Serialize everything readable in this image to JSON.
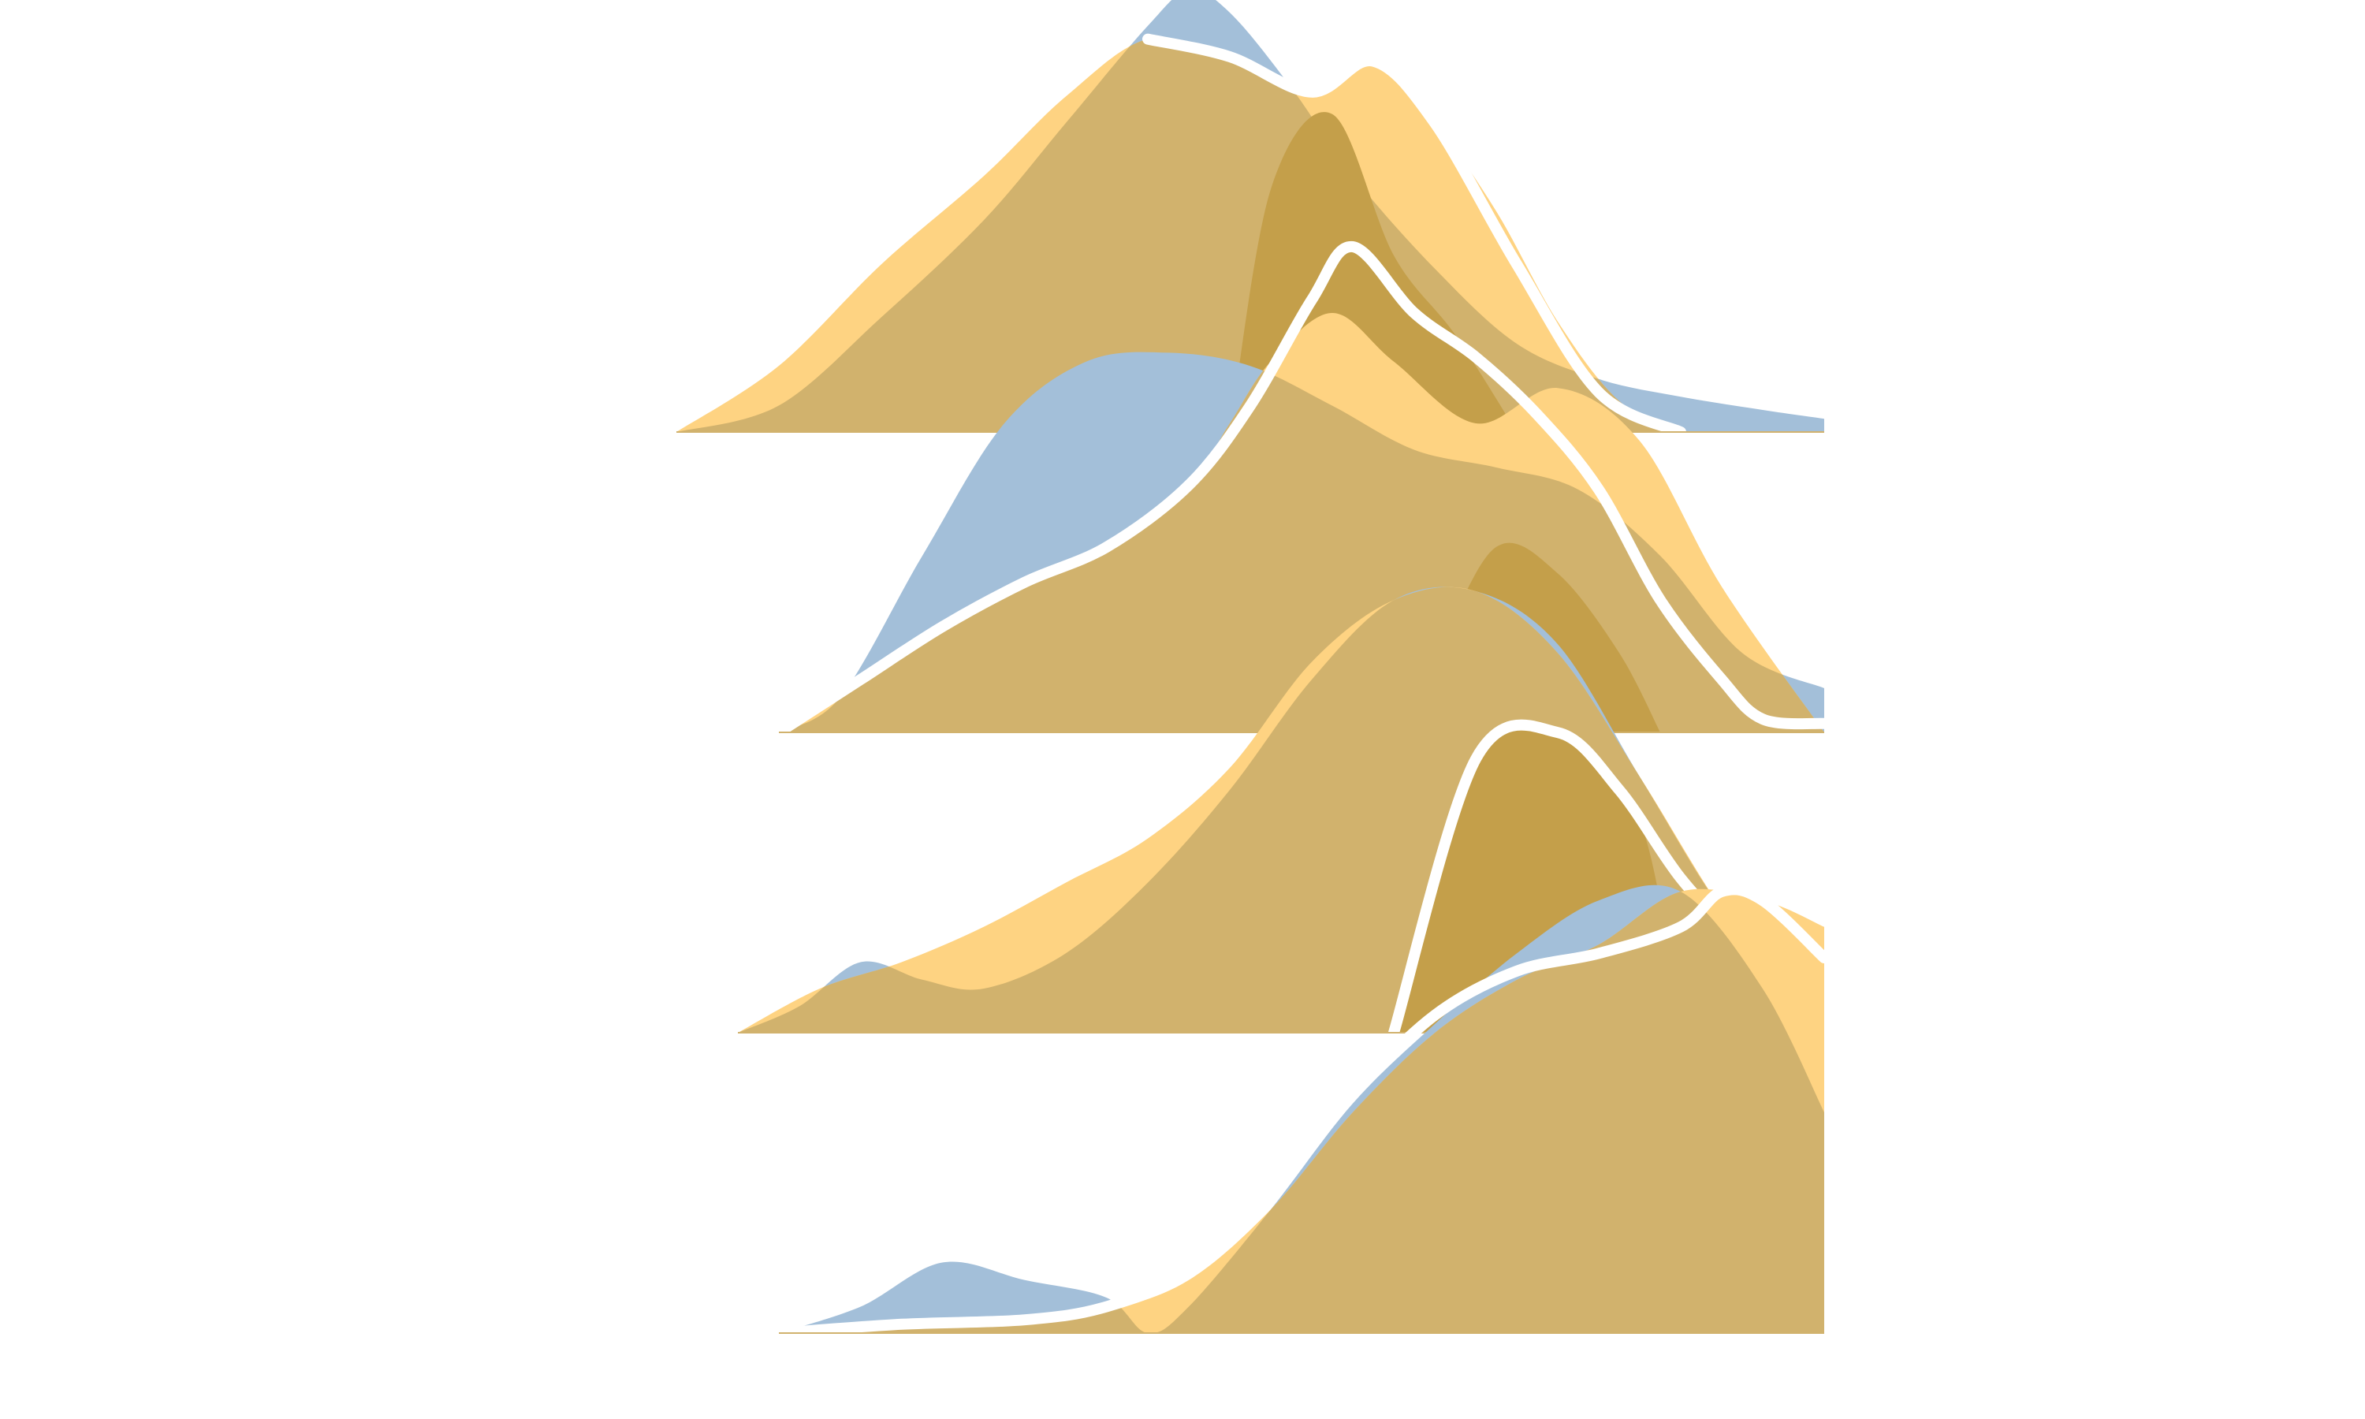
{
  "chart_data": {
    "type": "area",
    "title": "",
    "xlabel": "",
    "ylabel": "",
    "xlim": [
      0,
      100
    ],
    "grid": false,
    "legend": "none",
    "clip_right_x": 89,
    "series_colors": {
      "blue": "#a3bfd9",
      "yellow": "#fed382",
      "overlap": "#d1b26d",
      "highlight": "#e6ab38",
      "highlight_overlap": "#c49f4a",
      "outline": "#ffffff"
    },
    "rows": [
      {
        "blue": [
          [
            33,
            0
          ],
          [
            38,
            0.06
          ],
          [
            43,
            0.26
          ],
          [
            48,
            0.48
          ],
          [
            52,
            0.7
          ],
          [
            56,
            0.92
          ],
          [
            58,
            1.0
          ],
          [
            60,
            0.95
          ],
          [
            63,
            0.78
          ],
          [
            66,
            0.58
          ],
          [
            70,
            0.37
          ],
          [
            74,
            0.2
          ],
          [
            78,
            0.12
          ],
          [
            82,
            0.08
          ],
          [
            86,
            0.05
          ],
          [
            89,
            0.03
          ]
        ],
        "yellow": [
          [
            33,
            0
          ],
          [
            38,
            0.15
          ],
          [
            43,
            0.38
          ],
          [
            48,
            0.58
          ],
          [
            52,
            0.76
          ],
          [
            56,
            0.89
          ],
          [
            60,
            0.85
          ],
          [
            64,
            0.77
          ],
          [
            67,
            0.84
          ],
          [
            70,
            0.7
          ],
          [
            73,
            0.5
          ],
          [
            76,
            0.25
          ],
          [
            79,
            0.07
          ],
          [
            82,
            0.0
          ]
        ],
        "highlight": [
          [
            60,
            0
          ],
          [
            62,
            0.55
          ],
          [
            65,
            0.72
          ],
          [
            68,
            0.4
          ],
          [
            71,
            0.22
          ],
          [
            74,
            0.0
          ]
        ],
        "outline": [
          [
            56,
            0.89
          ],
          [
            60,
            0.85
          ],
          [
            64,
            0.77
          ],
          [
            67,
            0.84
          ],
          [
            70,
            0.7
          ],
          [
            74,
            0.38
          ],
          [
            78,
            0.09
          ],
          [
            82,
            0.0
          ]
        ]
      },
      {
        "blue": [
          [
            38,
            0
          ],
          [
            41,
            0.08
          ],
          [
            45,
            0.4
          ],
          [
            49,
            0.7
          ],
          [
            53,
            0.84
          ],
          [
            57,
            0.86
          ],
          [
            61,
            0.83
          ],
          [
            65,
            0.74
          ],
          [
            69,
            0.64
          ],
          [
            73,
            0.6
          ],
          [
            77,
            0.55
          ],
          [
            81,
            0.4
          ],
          [
            85,
            0.18
          ],
          [
            89,
            0.1
          ]
        ],
        "yellow": [
          [
            38,
            0
          ],
          [
            42,
            0.12
          ],
          [
            46,
            0.24
          ],
          [
            50,
            0.34
          ],
          [
            54,
            0.42
          ],
          [
            58,
            0.56
          ],
          [
            60,
            0.7
          ],
          [
            62,
            0.84
          ],
          [
            65,
            0.95
          ],
          [
            68,
            0.84
          ],
          [
            72,
            0.7
          ],
          [
            76,
            0.78
          ],
          [
            80,
            0.66
          ],
          [
            84,
            0.33
          ],
          [
            89,
            0.0
          ]
        ],
        "highlight": [
          [
            67,
            0
          ],
          [
            70,
            0.18
          ],
          [
            73,
            0.42
          ],
          [
            76,
            0.36
          ],
          [
            79,
            0.18
          ],
          [
            81,
            0.0
          ]
        ],
        "outline": [
          [
            38,
            0
          ],
          [
            42,
            0.12
          ],
          [
            46,
            0.24
          ],
          [
            50,
            0.34
          ],
          [
            54,
            0.42
          ],
          [
            58,
            0.56
          ],
          [
            61,
            0.74
          ],
          [
            64,
            0.98
          ],
          [
            66,
            1.1
          ],
          [
            69,
            0.95
          ],
          [
            72,
            0.85
          ],
          [
            75,
            0.72
          ],
          [
            78,
            0.55
          ],
          [
            81,
            0.3
          ],
          [
            84,
            0.12
          ],
          [
            86,
            0.03
          ],
          [
            89,
            0.02
          ]
        ]
      },
      {
        "blue": [
          [
            36,
            0
          ],
          [
            39,
            0.06
          ],
          [
            42,
            0.16
          ],
          [
            45,
            0.12
          ],
          [
            48,
            0.1
          ],
          [
            52,
            0.18
          ],
          [
            56,
            0.34
          ],
          [
            60,
            0.55
          ],
          [
            64,
            0.8
          ],
          [
            68,
            0.98
          ],
          [
            72,
            1.0
          ],
          [
            76,
            0.88
          ],
          [
            80,
            0.58
          ],
          [
            84,
            0.28
          ],
          [
            87,
            0.15
          ],
          [
            89,
            0.0
          ]
        ],
        "yellow": [
          [
            36,
            0
          ],
          [
            40,
            0.1
          ],
          [
            44,
            0.16
          ],
          [
            48,
            0.24
          ],
          [
            52,
            0.34
          ],
          [
            56,
            0.44
          ],
          [
            60,
            0.6
          ],
          [
            64,
            0.84
          ],
          [
            68,
            0.98
          ],
          [
            72,
            1.0
          ],
          [
            76,
            0.86
          ],
          [
            80,
            0.58
          ],
          [
            84,
            0.28
          ],
          [
            87,
            0.12
          ],
          [
            89,
            0.0
          ]
        ],
        "highlight": [
          [
            68,
            0
          ],
          [
            72,
            0.62
          ],
          [
            76,
            0.68
          ],
          [
            80,
            0.48
          ],
          [
            82,
            0.0
          ]
        ],
        "outline": [
          [
            68,
            0
          ],
          [
            72,
            0.62
          ],
          [
            76,
            0.68
          ],
          [
            79,
            0.55
          ],
          [
            82,
            0.35
          ],
          [
            85,
            0.2
          ],
          [
            87,
            0.1
          ],
          [
            89,
            0.05
          ]
        ]
      },
      {
        "blue": [
          [
            38,
            0
          ],
          [
            42,
            0.06
          ],
          [
            46,
            0.16
          ],
          [
            50,
            0.12
          ],
          [
            54,
            0.08
          ],
          [
            56,
            0.0
          ],
          [
            58,
            0.06
          ],
          [
            62,
            0.28
          ],
          [
            66,
            0.52
          ],
          [
            70,
            0.7
          ],
          [
            74,
            0.86
          ],
          [
            78,
            0.98
          ],
          [
            82,
            1.0
          ],
          [
            86,
            0.78
          ],
          [
            89,
            0.5
          ]
        ],
        "yellow": [
          [
            38,
            0
          ],
          [
            44,
            0.01
          ],
          [
            50,
            0.02
          ],
          [
            54,
            0.05
          ],
          [
            58,
            0.12
          ],
          [
            62,
            0.28
          ],
          [
            66,
            0.5
          ],
          [
            70,
            0.68
          ],
          [
            74,
            0.8
          ],
          [
            78,
            0.88
          ],
          [
            82,
            1.0
          ],
          [
            86,
            0.98
          ],
          [
            89,
            0.92
          ]
        ],
        "highlight": [],
        "outline": [
          [
            38,
            0
          ],
          [
            44,
            0.02
          ],
          [
            50,
            0.03
          ],
          [
            54,
            0.06
          ],
          [
            58,
            0.14
          ],
          [
            62,
            0.32
          ],
          [
            66,
            0.54
          ],
          [
            70,
            0.72
          ],
          [
            74,
            0.82
          ],
          [
            78,
            0.86
          ],
          [
            82,
            0.92
          ],
          [
            84,
            1.0
          ],
          [
            86,
            0.98
          ],
          [
            89,
            0.85
          ]
        ]
      }
    ]
  }
}
